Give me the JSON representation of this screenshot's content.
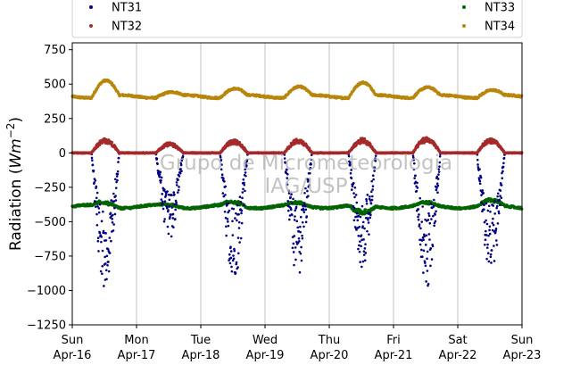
{
  "chart_data": {
    "type": "scatter",
    "ylabel_main": "Radiation (",
    "ylabel_math": "Wm",
    "ylabel_exp": "−2",
    "ylabel_close": ")",
    "ylim": [
      -1250,
      800
    ],
    "yticks": [
      750,
      500,
      250,
      0,
      -250,
      -500,
      -750,
      -1000,
      -1250
    ],
    "ytick_labels": [
      "750",
      "500",
      "250",
      "0",
      "−250",
      "−500",
      "−750",
      "−1000",
      "−1250"
    ],
    "xlim_days": [
      0,
      7
    ],
    "xticks": [
      {
        "day": "Sun",
        "date": "Apr-16"
      },
      {
        "day": "Mon",
        "date": "Apr-17"
      },
      {
        "day": "Tue",
        "date": "Apr-18"
      },
      {
        "day": "Wed",
        "date": "Apr-19"
      },
      {
        "day": "Thu",
        "date": "Apr-20"
      },
      {
        "day": "Fri",
        "date": "Apr-21"
      },
      {
        "day": "Sat",
        "date": "Apr-22"
      },
      {
        "day": "Sun",
        "date": "Apr-23"
      }
    ],
    "grid": "vertical",
    "legend_placement": "top",
    "watermark": [
      "Grupo de Micrometeorologia",
      "IAG/USP"
    ],
    "series": [
      {
        "name": "NT31",
        "color": "#000080",
        "baseline": 0,
        "day_peaks": [
          -950,
          -600,
          -890,
          -870,
          -800,
          -930,
          -840
        ],
        "note_shape": "downward daytime dips"
      },
      {
        "name": "NT32",
        "color": "#a52a2a",
        "baseline": 0,
        "day_peaks": [
          100,
          70,
          90,
          100,
          100,
          110,
          100
        ],
        "note_shape": "small daytime bumps"
      },
      {
        "name": "NT33",
        "color": "#006400",
        "baseline": -390,
        "day_peaks": [
          -360,
          -380,
          -360,
          -370,
          -450,
          -370,
          -350
        ]
      },
      {
        "name": "NT34",
        "color": "#b8860b",
        "baseline": 410,
        "day_peaks": [
          525,
          440,
          465,
          480,
          510,
          475,
          455
        ]
      }
    ]
  }
}
